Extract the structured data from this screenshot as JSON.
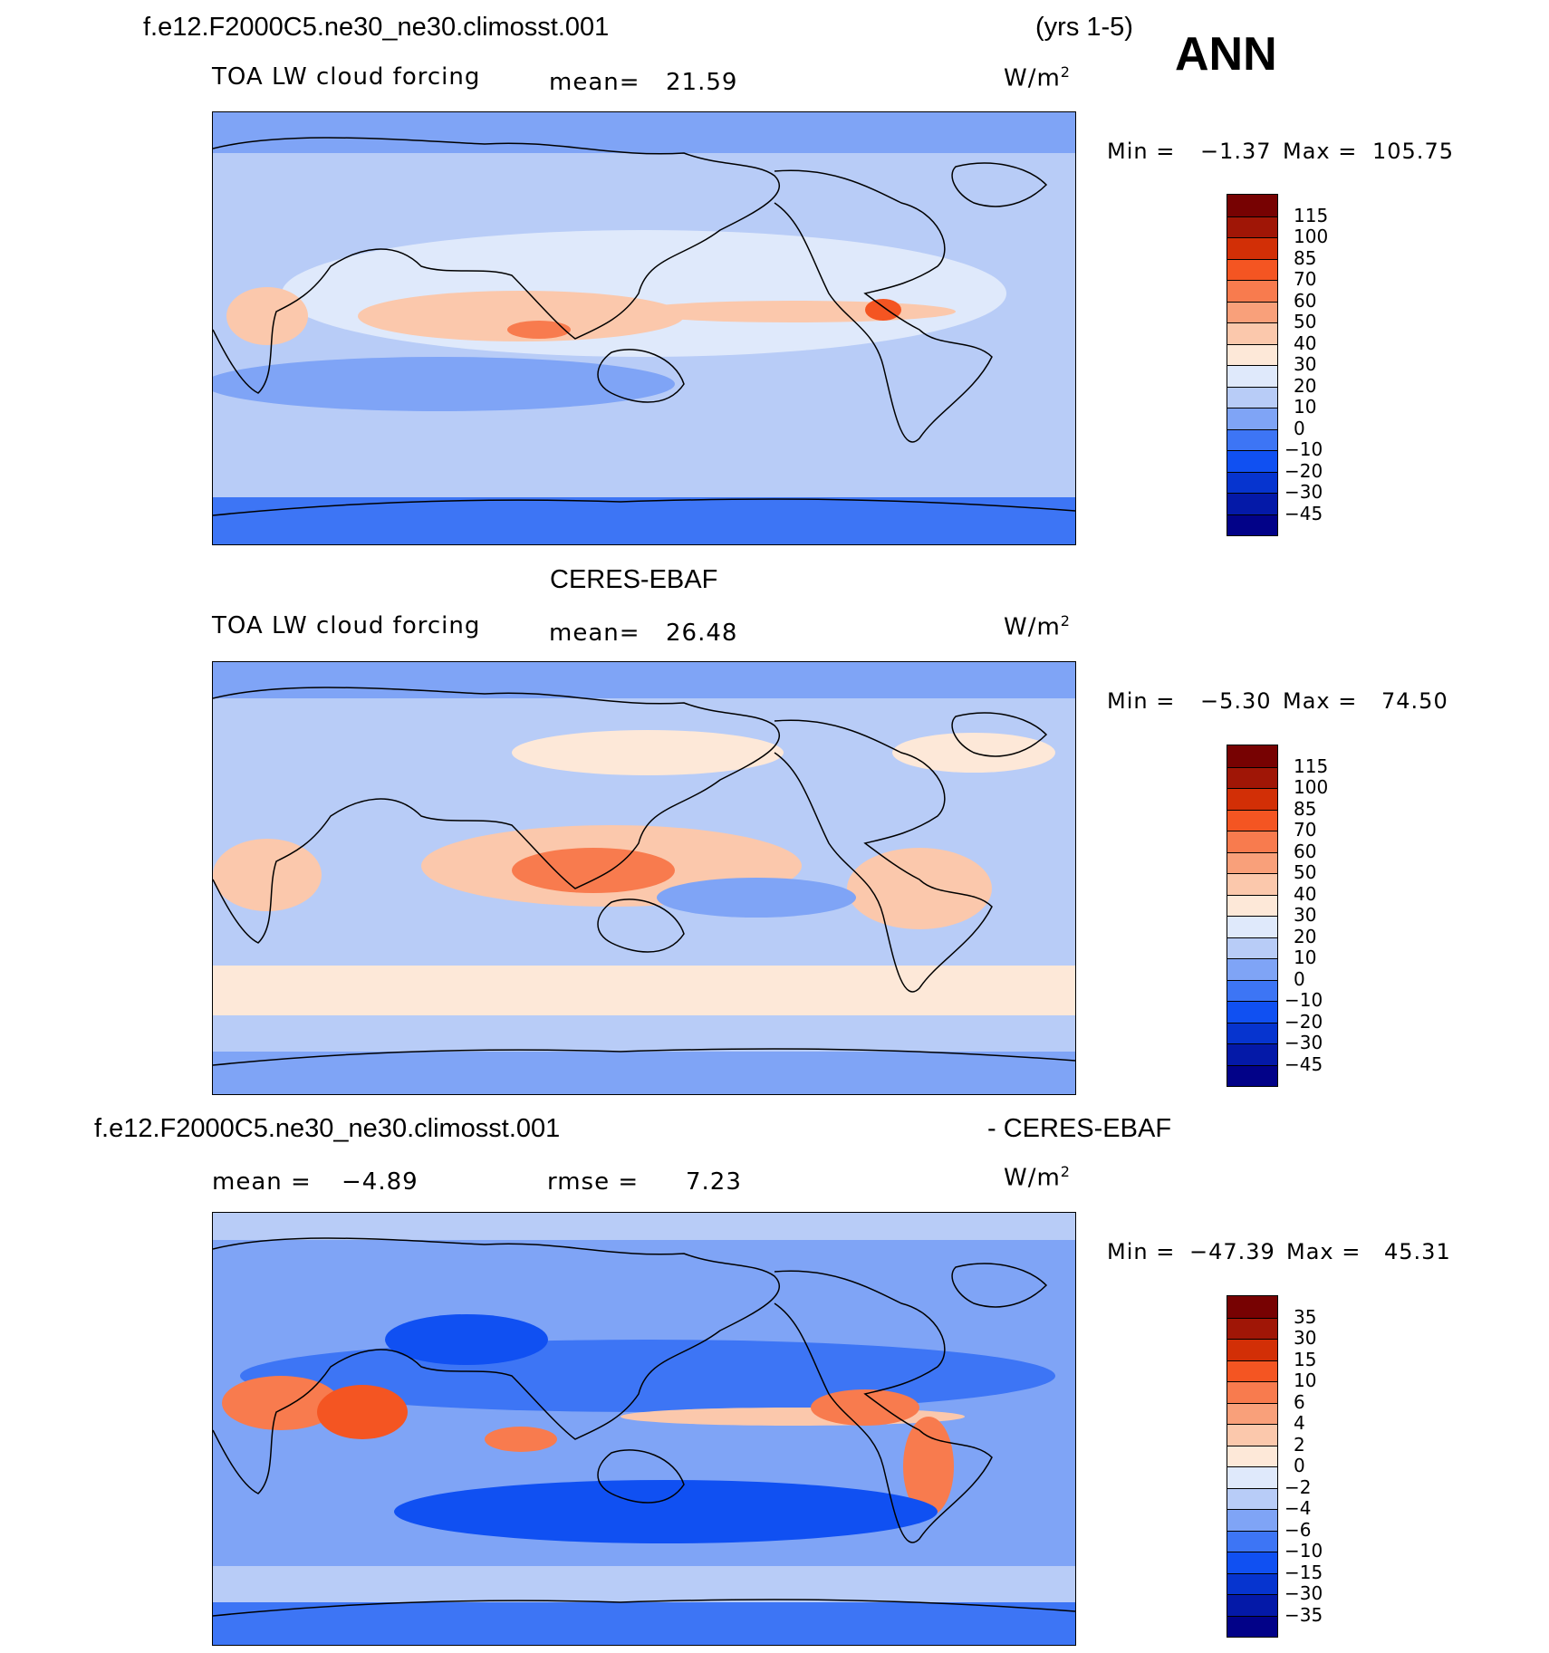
{
  "header": {
    "case_name": "f.e12.F2000C5.ne30_ne30.climosst.001",
    "years": "(yrs 1-5)",
    "season": "ANN"
  },
  "panels": [
    {
      "id": "model",
      "title": "",
      "field": "TOA LW cloud forcing",
      "mean_label": "mean=",
      "mean_value": "21.59",
      "units": "W/m",
      "units_sup": "2",
      "min_label": "Min =",
      "min_value": "−1.37",
      "max_label": "Max =",
      "max_value": "105.75",
      "colorbar_labels": [
        "115",
        "100",
        "85",
        "70",
        "60",
        "50",
        "40",
        "30",
        "20",
        "10",
        "0",
        "−10",
        "−20",
        "−30",
        "−45"
      ]
    },
    {
      "id": "obs",
      "title": "CERES-EBAF",
      "field": "TOA LW cloud forcing",
      "mean_label": "mean=",
      "mean_value": "26.48",
      "units": "W/m",
      "units_sup": "2",
      "min_label": "Min =",
      "min_value": "−5.30",
      "max_label": "Max =",
      "max_value": "74.50",
      "colorbar_labels": [
        "115",
        "100",
        "85",
        "70",
        "60",
        "50",
        "40",
        "30",
        "20",
        "10",
        "0",
        "−10",
        "−20",
        "−30",
        "−45"
      ]
    },
    {
      "id": "diff",
      "title_left": "f.e12.F2000C5.ne30_ne30.climosst.001",
      "title_right": "- CERES-EBAF",
      "mean_label": "mean =",
      "mean_value": "−4.89",
      "rmse_label": "rmse =",
      "rmse_value": "7.23",
      "units": "W/m",
      "units_sup": "2",
      "min_label": "Min =",
      "min_value": "−47.39",
      "max_label": "Max =",
      "max_value": "45.31",
      "colorbar_labels": [
        "35",
        "30",
        "15",
        "10",
        "6",
        "4",
        "2",
        "0",
        "−2",
        "−4",
        "−6",
        "−10",
        "−15",
        "−30",
        "−35"
      ]
    }
  ],
  "colors": {
    "palette": [
      "#020288",
      "#0419a8",
      "#0634cf",
      "#1050f2",
      "#3d75f5",
      "#7fa4f6",
      "#b8ccf7",
      "#dfe9fb",
      "#fde8d8",
      "#fbc8ac",
      "#f9a07a",
      "#f87b4e",
      "#f45522",
      "#d22f06",
      "#a01606",
      "#770202"
    ],
    "ocean_background": "#b8ccf7",
    "coastline": "#000000"
  }
}
